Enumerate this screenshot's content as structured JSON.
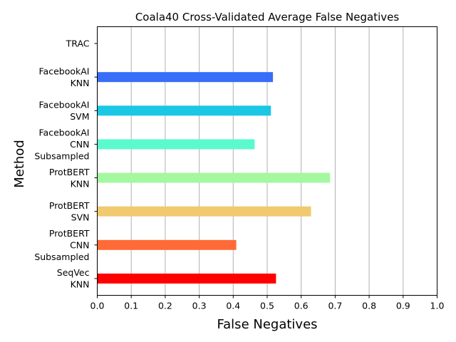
{
  "chart_data": {
    "type": "bar",
    "orientation": "horizontal",
    "title": "Coala40 Cross-Validated Average False Negatives",
    "xlabel": "False Negatives",
    "ylabel": "Method",
    "xlim": [
      0.0,
      1.0
    ],
    "xticks": [
      "0.0",
      "0.1",
      "0.2",
      "0.3",
      "0.4",
      "0.5",
      "0.6",
      "0.7",
      "0.8",
      "0.9",
      "1.0"
    ],
    "grid": "vertical",
    "categories": [
      [
        "TRAC"
      ],
      [
        "FacebookAI",
        "KNN"
      ],
      [
        "FacebookAI",
        "SVM"
      ],
      [
        "FacebookAI",
        "CNN",
        "Subsampled"
      ],
      [
        "ProtBERT",
        "KNN"
      ],
      [
        "ProtBERT",
        "SVN"
      ],
      [
        "ProtBERT",
        "CNN",
        "Subsampled"
      ],
      [
        "SeqVec",
        "KNN"
      ]
    ],
    "values": [
      0.0,
      0.517,
      0.511,
      0.463,
      0.685,
      0.629,
      0.409,
      0.526
    ],
    "colors": [
      "#8000ff",
      "#386df9",
      "#1ac7e4",
      "#5afacd",
      "#a4f89f",
      "#f1c96f",
      "#ff6a36",
      "#ff0000"
    ]
  }
}
